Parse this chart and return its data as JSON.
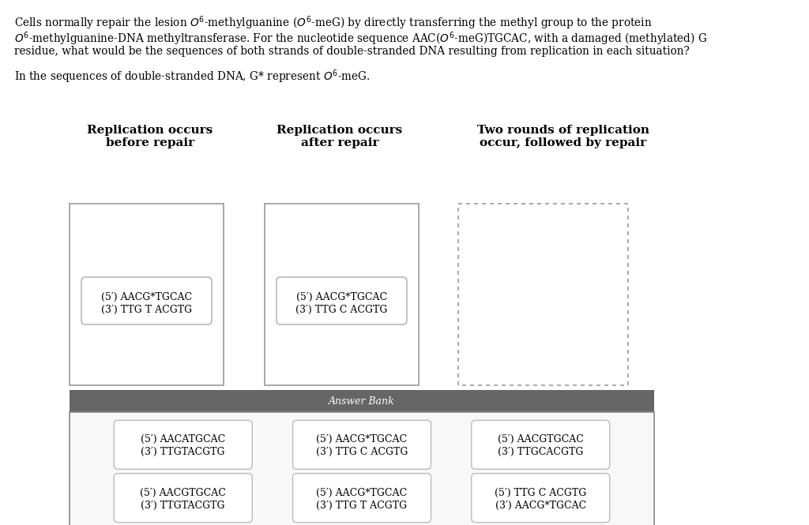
{
  "bg_color": "#ffffff",
  "col1_title": "Replication occurs\nbefore repair",
  "col2_title": "Replication occurs\nafter repair",
  "col3_title": "Two rounds of replication\noccur, followed by repair",
  "box1_line1": "(5′) AACG*TGCAC",
  "box1_line2": "(3′) TTG T ACGTG",
  "box2_line1": "(5′) AACG*TGCAC",
  "box2_line2": "(3′) TTG C ACGTG",
  "answer_bank_title": "Answer Bank",
  "answer_bank_bg": "#666666",
  "answer_bank_border": "#888888",
  "answer_bank_items": [
    {
      "line1": "(5′) AACATGCAC",
      "line2": "(3′) TTGTACGTG"
    },
    {
      "line1": "(5′) AACG*TGCAC",
      "line2": "(3′) TTG C ACGTG"
    },
    {
      "line1": "(5′) AACGTGCAC",
      "line2": "(3′) TTGCACGTG"
    },
    {
      "line1": "(5′) AACGTGCAC",
      "line2": "(3′) TTGTACGTG"
    },
    {
      "line1": "(5′) AACG*TGCAC",
      "line2": "(3′) TTG T ACGTG"
    },
    {
      "line1": "(5′) TTG C ACGTG",
      "line2": "(3′) AACG*TGCAC"
    }
  ],
  "para_lines": [
    "Cells normally repair the lesion $O^6$-methylguanine ($O^6$-meG) by directly transferring the methyl group to the protein",
    "$O^6$-methylguanine-DNA methyltransferase. For the nucleotide sequence AAC($O^6$-meG)TGCAC, with a damaged (methylated) G",
    "residue, what would be the sequences of both strands of double-stranded DNA resulting from replication in each situation?"
  ],
  "para2": "In the sequences of double-stranded DNA, G* represent $O^6$-meG."
}
